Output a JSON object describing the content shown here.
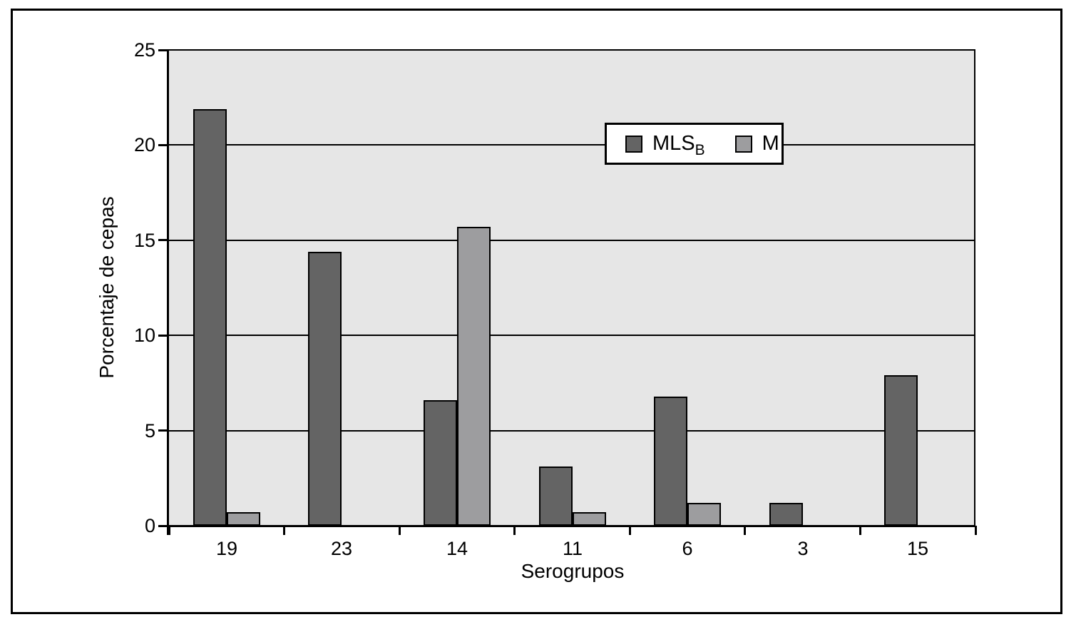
{
  "figure": {
    "frame_border_color": "#000000",
    "background_color": "#ffffff"
  },
  "colors": {
    "mlsb_bar": "#646464",
    "m_bar": "#9d9d9f",
    "plot_background": "#e6e6e6",
    "line": "#000000"
  },
  "legend": {
    "entries": [
      {
        "main": "MLS",
        "sub": "B"
      },
      {
        "main": "M",
        "sub": ""
      }
    ]
  },
  "chart_data": {
    "type": "bar",
    "title": "",
    "categories": [
      "19",
      "23",
      "14",
      "11",
      "6",
      "3",
      "15"
    ],
    "series": [
      {
        "name": "MLS_B",
        "color": "#646464",
        "values": [
          21.9,
          14.4,
          6.6,
          3.1,
          6.8,
          1.2,
          7.9
        ]
      },
      {
        "name": "M",
        "color": "#9d9d9f",
        "values": [
          0.7,
          0,
          15.7,
          0.7,
          1.2,
          0,
          0
        ]
      }
    ],
    "xlabel": "Serogrupos",
    "ylabel": "Porcentaje de cepas",
    "ylim": [
      0,
      25
    ],
    "yticks": [
      0,
      5,
      10,
      15,
      20,
      25
    ],
    "grid": true,
    "legend_position": "inside-top-center"
  }
}
